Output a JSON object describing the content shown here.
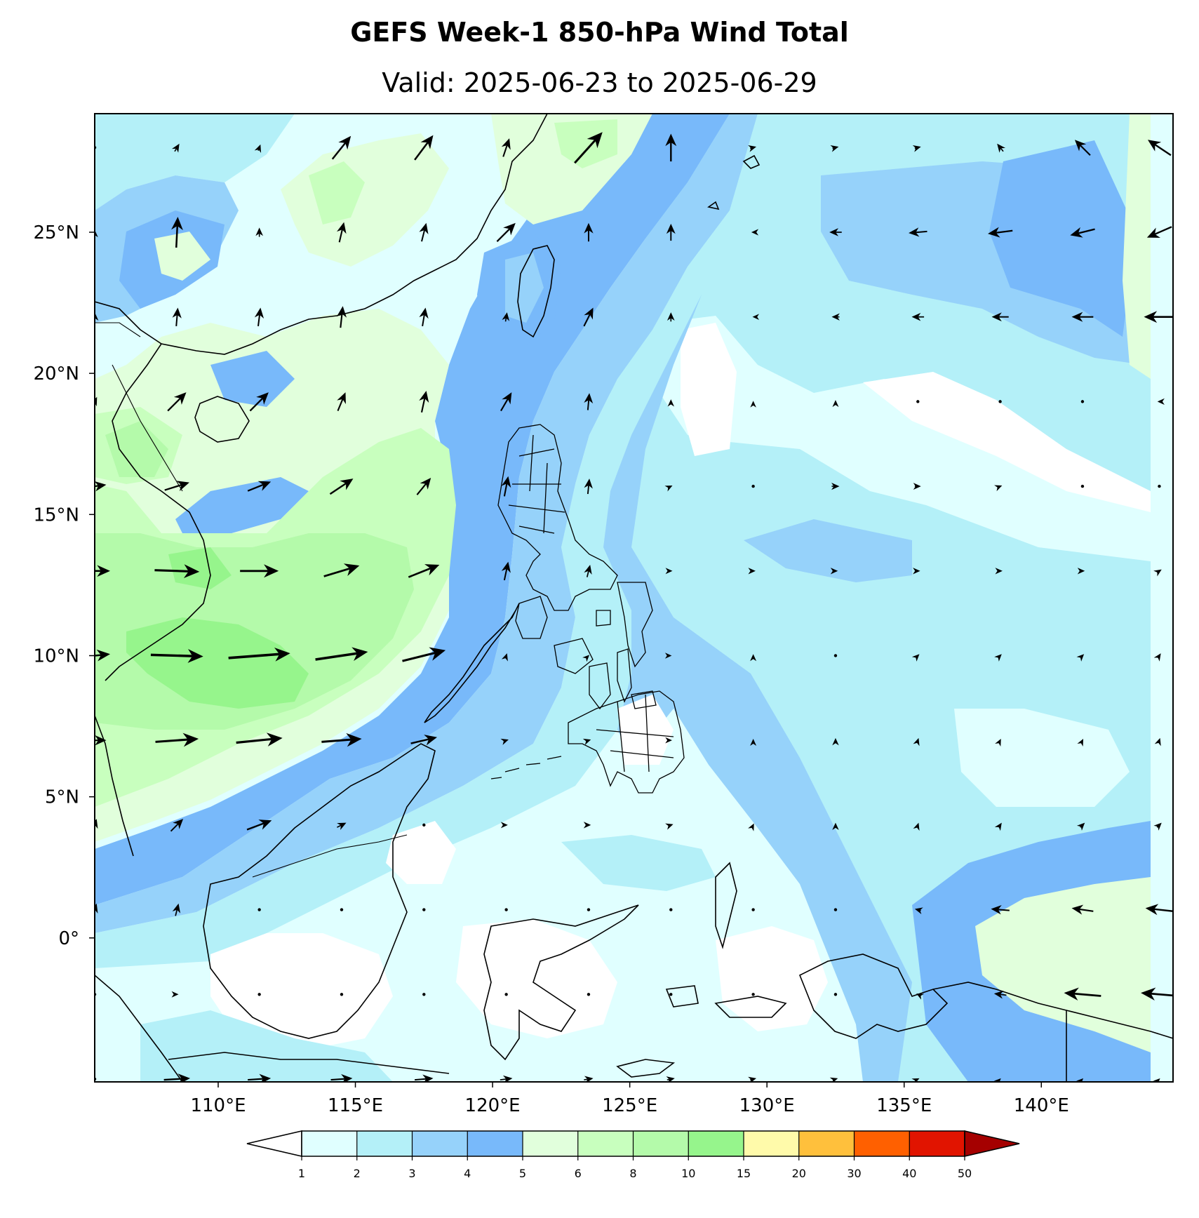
{
  "title": "GEFS Week-1 850-hPa Wind Total",
  "subtitle": "Valid: 2025-06-23 to 2025-06-29",
  "map": {
    "lon_range": [
      105.5,
      144.8
    ],
    "lat_range": [
      -5.1,
      29.2
    ],
    "lon_ticks": [
      110,
      115,
      120,
      125,
      130,
      135,
      140
    ],
    "lon_tick_labels": [
      "110°E",
      "115°E",
      "120°E",
      "125°E",
      "130°E",
      "135°E",
      "140°E"
    ],
    "lat_ticks": [
      25,
      20,
      15,
      10,
      5,
      0
    ],
    "lat_tick_labels": [
      "25°N",
      "20°N",
      "15°N",
      "10°N",
      "5°N",
      "0°"
    ],
    "region": "Philippines, South China Sea and Indonesia",
    "features": [
      "coastlines",
      "country borders",
      "Philippine province boundaries"
    ]
  },
  "colorbar": {
    "levels": [
      "1",
      "2",
      "3",
      "4",
      "5",
      "6",
      "8",
      "10",
      "15",
      "20",
      "30",
      "40",
      "50"
    ],
    "colors": [
      "#e0ffff",
      "#b4f0f8",
      "#96d2fa",
      "#78b9fa",
      "#e1ffdc",
      "#c8ffbe",
      "#b4faaa",
      "#96f58c",
      "#fffaaa",
      "#ffc03c",
      "#ff6000",
      "#e11400",
      "#a50000"
    ],
    "under_color": "#ffffff",
    "over_color": "#a50000",
    "extend": "both"
  },
  "shading": {
    "variable": "850-hPa wind speed (m/s)",
    "background_color": "#e0ffff",
    "zones": [
      {
        "color": "#b4f0f8",
        "area": "central Pacific east of the Philippines and east of 130E"
      },
      {
        "color": "#96d2fa",
        "area": "band along the monsoon trough and north Pacific"
      },
      {
        "color": "#78b9fa",
        "area": "corridor from Java Sea over Philippines to Taiwan Strait"
      },
      {
        "color": "#e1ffdc",
        "area": "South China Sea and southern China"
      },
      {
        "color": "#c8ffbe",
        "area": "central South China Sea"
      },
      {
        "color": "#b4faaa",
        "area": "southern South China Sea"
      },
      {
        "color": "#96f58c",
        "area": "southwest monsoon jet near 10N 112E"
      },
      {
        "color": "#ffffff",
        "area": "calm areas over Indonesia and east of Luzon"
      }
    ]
  },
  "wind_vectors": {
    "lon": [
      105.5,
      108.5,
      111.5,
      114.5,
      117.5,
      120.5,
      123.5,
      126.5,
      129.5,
      132.5,
      135.5,
      138.5,
      141.5,
      144.3
    ],
    "lat": [
      28,
      25,
      22,
      19,
      16,
      13,
      10,
      7,
      4,
      1,
      -2,
      -5
    ],
    "u_ms": [
      [
        0,
        0.6,
        0.3,
        2.4,
        2.4,
        0.8,
        3.6,
        0.0,
        0.8,
        0.8,
        0.8,
        -0.8,
        -2.0,
        -3.0
      ],
      [
        0,
        0.2,
        0.0,
        0.6,
        0.6,
        2.4,
        0.0,
        0.0,
        -0.5,
        -1.6,
        -2.4,
        -3.2,
        -3.2,
        -3.2
      ],
      [
        0,
        0.2,
        0.3,
        0.3,
        0.4,
        0.2,
        1.2,
        0.0,
        -0.2,
        -1.0,
        -1.6,
        -2.2,
        -2.8,
        -4.0
      ],
      [
        0.6,
        2.4,
        2.4,
        1.0,
        0.6,
        1.4,
        0.2,
        0.0,
        0.0,
        0.0,
        0,
        0,
        0,
        -0.5
      ],
      [
        3.0,
        3.2,
        3.0,
        3.0,
        1.8,
        0.5,
        0.2,
        0.4,
        0.0,
        1.0,
        0.8,
        0.5,
        0,
        0
      ],
      [
        4.0,
        5.8,
        5.0,
        4.6,
        4.0,
        0.5,
        0.4,
        0.4,
        0.6,
        0.6,
        0.6,
        0.6,
        0.6,
        0.6
      ],
      [
        4.0,
        6.8,
        8.0,
        6.8,
        5.6,
        0.2,
        0.2,
        0.2,
        0.0,
        0.0,
        0.4,
        0.4,
        0.4,
        0.4
      ],
      [
        3.0,
        5.6,
        6.0,
        5.2,
        3.4,
        0.6,
        0.6,
        0.3,
        0.0,
        0.0,
        0.2,
        0.2,
        0.2,
        0.2
      ],
      [
        0.5,
        1.6,
        3.2,
        1.2,
        0.0,
        0.4,
        0.6,
        0.6,
        0.2,
        0.0,
        0.2,
        0.4,
        0.6,
        0.6
      ],
      [
        0.5,
        0.4,
        0.0,
        0.0,
        0.0,
        0.0,
        0.0,
        0.0,
        0.0,
        0.0,
        -0.8,
        -2.4,
        -2.8,
        -3.6
      ],
      [
        0,
        0.4,
        0,
        0,
        0,
        0,
        0,
        0,
        0,
        0,
        -0.4,
        -1.6,
        -4.8,
        -4.8
      ],
      [
        0,
        3.4,
        3.0,
        2.8,
        2.4,
        1.6,
        1.2,
        1.0,
        0.8,
        0.6,
        0.4,
        0.2,
        0.2,
        0.2
      ]
    ],
    "v_ms": [
      [
        0,
        1.0,
        0.8,
        3.0,
        3.2,
        2.4,
        4.0,
        3.6,
        0.2,
        0.2,
        0.2,
        1.0,
        2.0,
        2.0
      ],
      [
        0.6,
        4.0,
        1.2,
        2.6,
        2.4,
        2.4,
        2.4,
        2.2,
        0.0,
        0.0,
        -0.2,
        -0.4,
        -0.8,
        -1.4
      ],
      [
        1.2,
        2.4,
        2.4,
        2.8,
        2.4,
        1.2,
        2.4,
        1.2,
        0.0,
        0.0,
        0.0,
        0.0,
        0.0,
        0.0
      ],
      [
        1.2,
        2.4,
        2.4,
        2.4,
        2.8,
        2.4,
        2.2,
        0.6,
        0.2,
        0.4,
        0,
        0,
        0,
        0.0
      ],
      [
        0.4,
        1.0,
        1.2,
        2.0,
        2.2,
        2.6,
        2.0,
        0.2,
        0.0,
        0.0,
        0.0,
        0.2,
        0,
        0
      ],
      [
        0.0,
        -0.2,
        0.0,
        1.4,
        1.6,
        2.4,
        1.6,
        0.0,
        0.0,
        0.0,
        0.0,
        0.0,
        0.0,
        0.4
      ],
      [
        0.4,
        -0.2,
        0.6,
        1.0,
        1.4,
        0.6,
        0.2,
        0.0,
        0.4,
        0.0,
        0.4,
        0.4,
        0.4,
        0.6
      ],
      [
        0.0,
        0.4,
        0.6,
        0.4,
        0.8,
        0.2,
        0.2,
        0.0,
        0.4,
        0.6,
        0.6,
        0.4,
        0.4,
        0.6
      ],
      [
        1.6,
        1.6,
        1.2,
        0.6,
        0.0,
        0.0,
        0.0,
        0.2,
        0.4,
        0.6,
        0.6,
        0.6,
        0.6,
        0.6
      ],
      [
        1.6,
        1.6,
        0.0,
        0.0,
        0.0,
        0.0,
        0.0,
        0.0,
        0.0,
        0.0,
        0.2,
        0.2,
        0.4,
        0.4
      ],
      [
        0,
        0,
        0,
        0,
        0,
        0,
        0,
        0,
        0,
        0,
        0.2,
        0.2,
        0.4,
        0.4
      ],
      [
        0,
        0.2,
        0.2,
        0.2,
        0.2,
        0.2,
        0.2,
        0.2,
        0.2,
        0.2,
        0.2,
        0.2,
        0.2,
        0.2
      ]
    ]
  }
}
